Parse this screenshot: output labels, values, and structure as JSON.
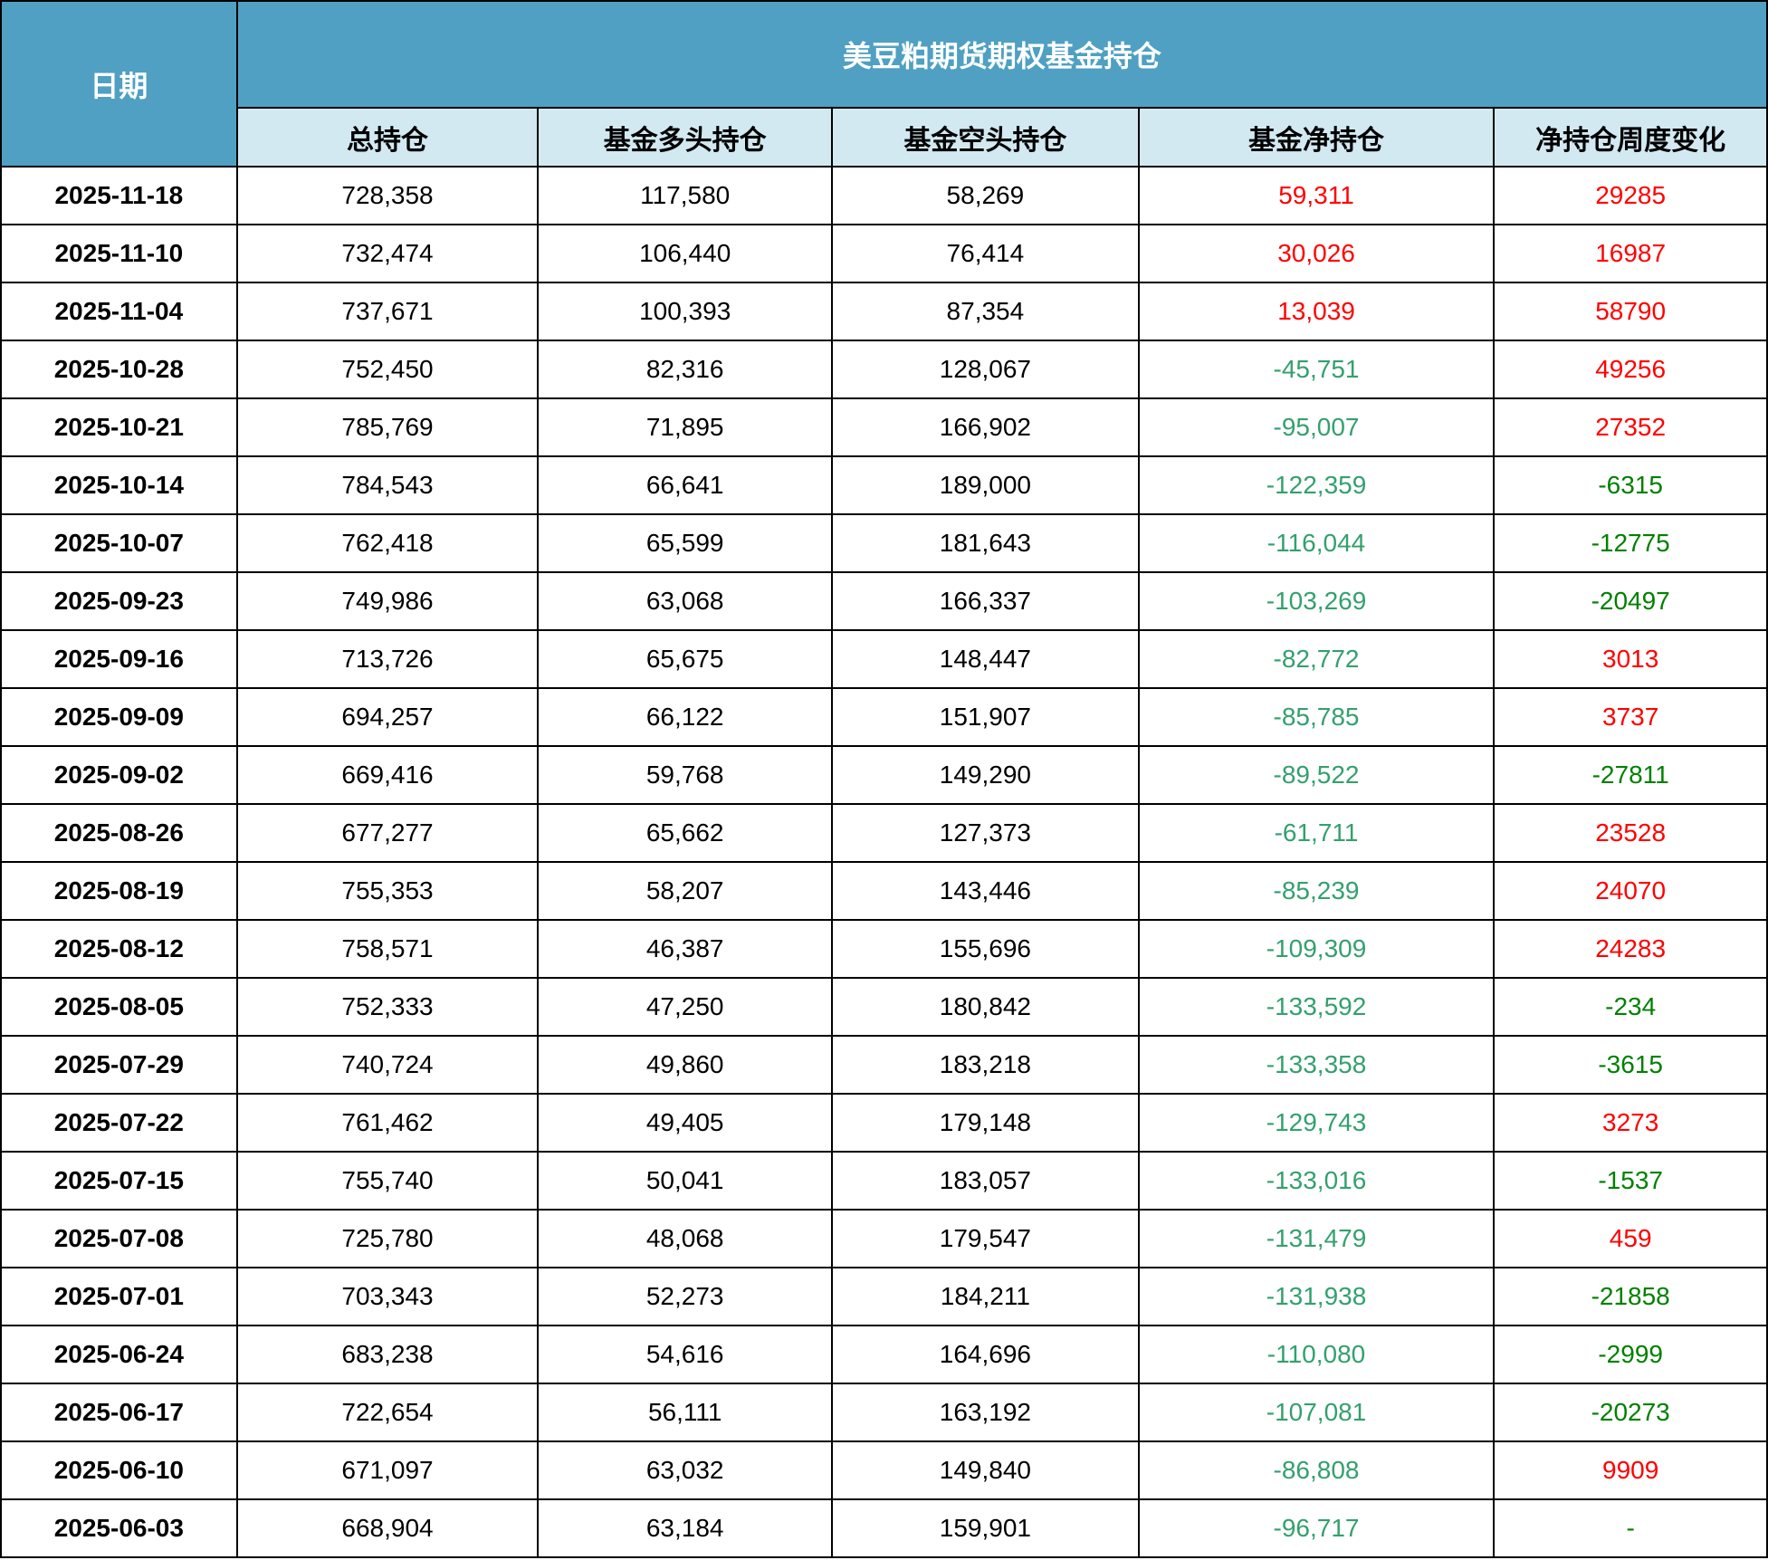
{
  "colors": {
    "header_bg": "#4FA0C3",
    "subheader_bg": "#D2E9F2",
    "header_text": "#FFFFFF",
    "body_text": "#000000",
    "positive_red": "#FF0000",
    "net_negative_green": "#34A06E",
    "change_negative_green": "#008000",
    "border": "#000000"
  },
  "chart_data": {
    "type": "table",
    "title": "美豆粕期货期权基金持仓",
    "corner_header": "日期",
    "columns": [
      "总持仓",
      "基金多头持仓",
      "基金空头持仓",
      "基金净持仓",
      "净持仓周度变化"
    ],
    "color_rules": {
      "net_positive": "red",
      "net_negative": "sea-green",
      "change_positive": "red",
      "change_negative": "dark-green"
    },
    "rows": [
      {
        "date": "2025-11-18",
        "total": "728,358",
        "long": "117,580",
        "short": "58,269",
        "net": "59,311",
        "change": "29285"
      },
      {
        "date": "2025-11-10",
        "total": "732,474",
        "long": "106,440",
        "short": "76,414",
        "net": "30,026",
        "change": "16987"
      },
      {
        "date": "2025-11-04",
        "total": "737,671",
        "long": "100,393",
        "short": "87,354",
        "net": "13,039",
        "change": "58790"
      },
      {
        "date": "2025-10-28",
        "total": "752,450",
        "long": "82,316",
        "short": "128,067",
        "net": "-45,751",
        "change": "49256"
      },
      {
        "date": "2025-10-21",
        "total": "785,769",
        "long": "71,895",
        "short": "166,902",
        "net": "-95,007",
        "change": "27352"
      },
      {
        "date": "2025-10-14",
        "total": "784,543",
        "long": "66,641",
        "short": "189,000",
        "net": "-122,359",
        "change": "-6315"
      },
      {
        "date": "2025-10-07",
        "total": "762,418",
        "long": "65,599",
        "short": "181,643",
        "net": "-116,044",
        "change": "-12775"
      },
      {
        "date": "2025-09-23",
        "total": "749,986",
        "long": "63,068",
        "short": "166,337",
        "net": "-103,269",
        "change": "-20497"
      },
      {
        "date": "2025-09-16",
        "total": "713,726",
        "long": "65,675",
        "short": "148,447",
        "net": "-82,772",
        "change": "3013"
      },
      {
        "date": "2025-09-09",
        "total": "694,257",
        "long": "66,122",
        "short": "151,907",
        "net": "-85,785",
        "change": "3737"
      },
      {
        "date": "2025-09-02",
        "total": "669,416",
        "long": "59,768",
        "short": "149,290",
        "net": "-89,522",
        "change": "-27811"
      },
      {
        "date": "2025-08-26",
        "total": "677,277",
        "long": "65,662",
        "short": "127,373",
        "net": "-61,711",
        "change": "23528"
      },
      {
        "date": "2025-08-19",
        "total": "755,353",
        "long": "58,207",
        "short": "143,446",
        "net": "-85,239",
        "change": "24070"
      },
      {
        "date": "2025-08-12",
        "total": "758,571",
        "long": "46,387",
        "short": "155,696",
        "net": "-109,309",
        "change": "24283"
      },
      {
        "date": "2025-08-05",
        "total": "752,333",
        "long": "47,250",
        "short": "180,842",
        "net": "-133,592",
        "change": "-234"
      },
      {
        "date": "2025-07-29",
        "total": "740,724",
        "long": "49,860",
        "short": "183,218",
        "net": "-133,358",
        "change": "-3615"
      },
      {
        "date": "2025-07-22",
        "total": "761,462",
        "long": "49,405",
        "short": "179,148",
        "net": "-129,743",
        "change": "3273"
      },
      {
        "date": "2025-07-15",
        "total": "755,740",
        "long": "50,041",
        "short": "183,057",
        "net": "-133,016",
        "change": "-1537"
      },
      {
        "date": "2025-07-08",
        "total": "725,780",
        "long": "48,068",
        "short": "179,547",
        "net": "-131,479",
        "change": "459"
      },
      {
        "date": "2025-07-01",
        "total": "703,343",
        "long": "52,273",
        "short": "184,211",
        "net": "-131,938",
        "change": "-21858"
      },
      {
        "date": "2025-06-24",
        "total": "683,238",
        "long": "54,616",
        "short": "164,696",
        "net": "-110,080",
        "change": "-2999"
      },
      {
        "date": "2025-06-17",
        "total": "722,654",
        "long": "56,111",
        "short": "163,192",
        "net": "-107,081",
        "change": "-20273"
      },
      {
        "date": "2025-06-10",
        "total": "671,097",
        "long": "63,032",
        "short": "149,840",
        "net": "-86,808",
        "change": "9909"
      },
      {
        "date": "2025-06-03",
        "total": "668,904",
        "long": "63,184",
        "short": "159,901",
        "net": "-96,717",
        "change": "-"
      }
    ]
  }
}
